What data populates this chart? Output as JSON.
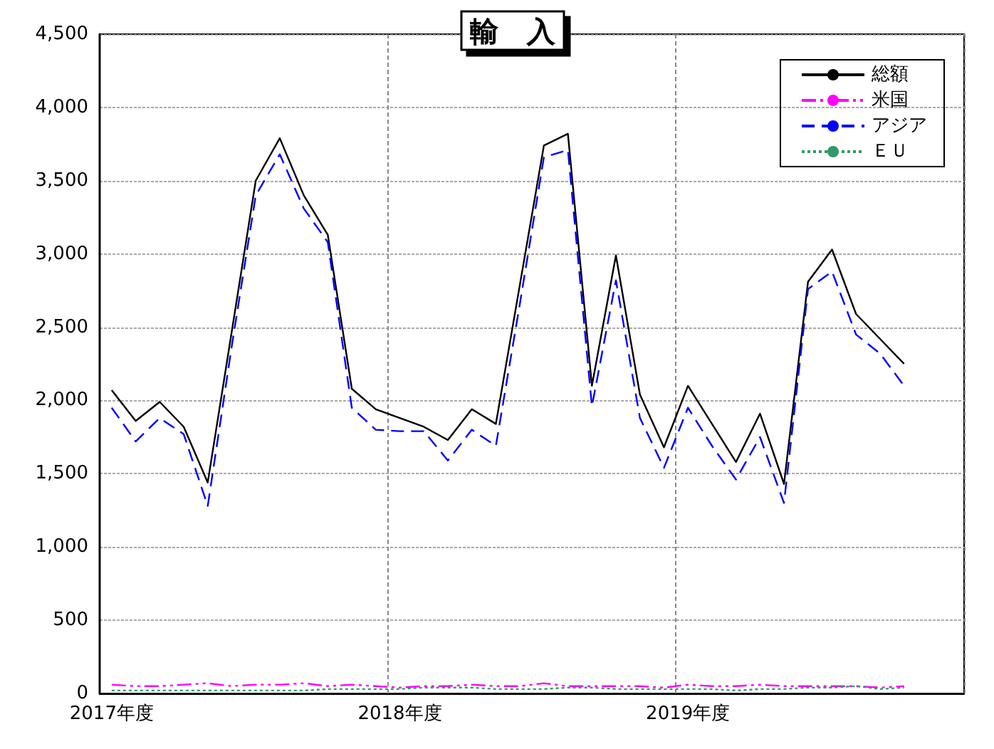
{
  "chart_data": {
    "type": "line",
    "title": "輸　入",
    "categories": [
      "2017年度",
      null,
      null,
      null,
      null,
      null,
      null,
      null,
      null,
      null,
      null,
      null,
      "2018年度",
      null,
      null,
      null,
      null,
      null,
      null,
      null,
      null,
      null,
      null,
      null,
      "2019年度",
      null,
      null,
      null,
      null,
      null,
      null,
      null,
      null,
      null,
      null,
      null
    ],
    "series": [
      {
        "name": "総額",
        "color": "#000000",
        "line_style": "solid",
        "values": [
          2070,
          1860,
          1990,
          1820,
          1440,
          2470,
          3500,
          3790,
          3400,
          3130,
          2080,
          1940,
          1880,
          1820,
          1730,
          1940,
          1840,
          2790,
          3740,
          3820,
          2100,
          2990,
          2040,
          1680,
          2100,
          1840,
          1580,
          1910,
          1430,
          2810,
          3030,
          2590,
          2420,
          2250,
          null,
          null
        ]
      },
      {
        "name": "米国",
        "color": "#ff00ff",
        "line_style": "dashdot",
        "values": [
          60,
          50,
          50,
          60,
          70,
          50,
          60,
          60,
          70,
          50,
          60,
          50,
          40,
          50,
          50,
          60,
          50,
          50,
          70,
          50,
          50,
          50,
          50,
          40,
          60,
          50,
          50,
          60,
          50,
          50,
          50,
          50,
          40,
          50,
          null,
          null
        ]
      },
      {
        "name": "アジア",
        "color": "#0000ff",
        "line_style": "dashed",
        "values": [
          1950,
          1720,
          1880,
          1770,
          1280,
          2370,
          3400,
          3680,
          3310,
          3080,
          1950,
          1800,
          1790,
          1790,
          1590,
          1800,
          1690,
          2660,
          3660,
          3710,
          1960,
          2820,
          1880,
          1540,
          1950,
          1690,
          1460,
          1750,
          1300,
          2760,
          2880,
          2450,
          2320,
          2100,
          null,
          null
        ]
      },
      {
        "name": "ＥＵ",
        "color": "#339966",
        "line_style": "dotted",
        "values": [
          20,
          20,
          20,
          20,
          20,
          20,
          20,
          20,
          20,
          30,
          30,
          30,
          30,
          40,
          40,
          40,
          30,
          30,
          30,
          40,
          40,
          30,
          30,
          30,
          30,
          30,
          20,
          30,
          30,
          40,
          40,
          50,
          30,
          40,
          null,
          null
        ]
      }
    ],
    "ylim": [
      0,
      4500
    ],
    "yticks": [
      0,
      500,
      {
        "value": 1000,
        "label": "1,000"
      },
      {
        "value": 1500,
        "label": "1,500"
      },
      {
        "value": 2000,
        "label": "2,000"
      },
      {
        "value": 2500,
        "label": "2,500"
      },
      {
        "value": 3000,
        "label": "3,000"
      },
      {
        "value": 3500,
        "label": "3,500"
      },
      {
        "value": 4000,
        "label": "4,000"
      },
      {
        "value": 4500,
        "label": "4,500"
      }
    ],
    "grid": true,
    "legend": "top right",
    "marker": "none"
  }
}
